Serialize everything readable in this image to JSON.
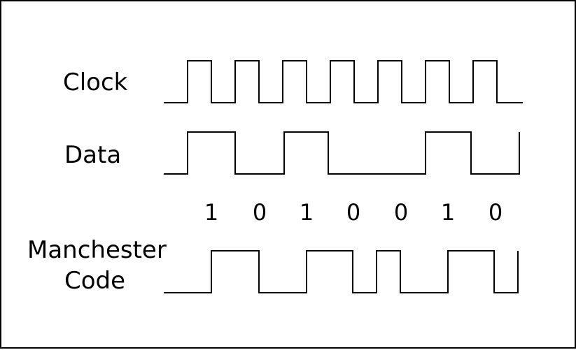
{
  "labels": {
    "clock": "Clock",
    "data": "Data",
    "manchester_line1": "Manchester",
    "manchester_line2": "Code"
  },
  "bits": [
    "1",
    "0",
    "1",
    "0",
    "0",
    "1",
    "0"
  ],
  "colors": {
    "line": "#000000",
    "background": "#ffffff",
    "border": "#000000"
  }
}
